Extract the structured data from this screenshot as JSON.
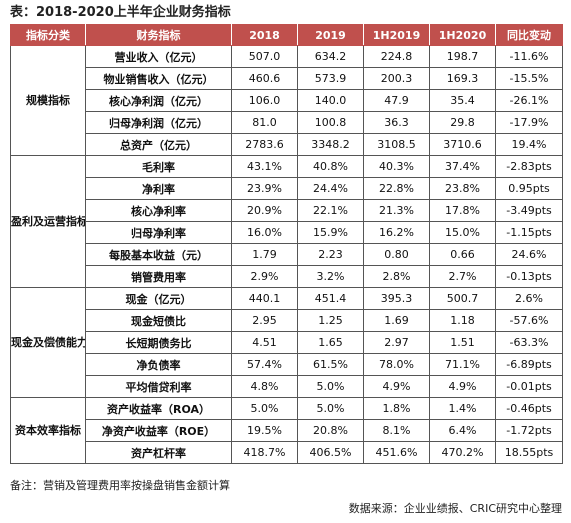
{
  "title": "表：2018-2020上半年企业财务指标",
  "headers": [
    "指标分类",
    "财务指标",
    "2018",
    "2019",
    "1H2019",
    "1H2020",
    "同比变动"
  ],
  "groups": [
    {
      "category": "规模指标",
      "rows": [
        {
          "label": "营业收入（亿元）",
          "values": [
            "507.0",
            "634.2",
            "224.8",
            "198.7",
            "-11.6%"
          ]
        },
        {
          "label": "物业销售收入（亿元）",
          "values": [
            "460.6",
            "573.9",
            "200.3",
            "169.3",
            "-15.5%"
          ]
        },
        {
          "label": "核心净利润（亿元）",
          "values": [
            "106.0",
            "140.0",
            "47.9",
            "35.4",
            "-26.1%"
          ]
        },
        {
          "label": "归母净利润（亿元）",
          "values": [
            "81.0",
            "100.8",
            "36.3",
            "29.8",
            "-17.9%"
          ]
        },
        {
          "label": "总资产（亿元）",
          "values": [
            "2783.6",
            "3348.2",
            "3108.5",
            "3710.6",
            "19.4%"
          ]
        }
      ]
    },
    {
      "category": "盈利及运营指标",
      "rows": [
        {
          "label": "毛利率",
          "values": [
            "43.1%",
            "40.8%",
            "40.3%",
            "37.4%",
            "-2.83pts"
          ]
        },
        {
          "label": "净利率",
          "values": [
            "23.9%",
            "24.4%",
            "22.8%",
            "23.8%",
            "0.95pts"
          ]
        },
        {
          "label": "核心净利率",
          "values": [
            "20.9%",
            "22.1%",
            "21.3%",
            "17.8%",
            "-3.49pts"
          ]
        },
        {
          "label": "归母净利率",
          "values": [
            "16.0%",
            "15.9%",
            "16.2%",
            "15.0%",
            "-1.15pts"
          ]
        },
        {
          "label": "每股基本收益（元）",
          "values": [
            "1.79",
            "2.23",
            "0.80",
            "0.66",
            "24.6%"
          ]
        },
        {
          "label": "销管费用率",
          "values": [
            "2.9%",
            "3.2%",
            "2.8%",
            "2.7%",
            "-0.13pts"
          ]
        }
      ]
    },
    {
      "category": "现金及偿债能力指标",
      "rows": [
        {
          "label": "现金（亿元）",
          "values": [
            "440.1",
            "451.4",
            "395.3",
            "500.7",
            "2.6%"
          ]
        },
        {
          "label": "现金短债比",
          "values": [
            "2.95",
            "1.25",
            "1.69",
            "1.18",
            "-57.6%"
          ]
        },
        {
          "label": "长短期债务比",
          "values": [
            "4.51",
            "1.65",
            "2.97",
            "1.51",
            "-63.3%"
          ]
        },
        {
          "label": "净负债率",
          "values": [
            "57.4%",
            "61.5%",
            "78.0%",
            "71.1%",
            "-6.89pts"
          ]
        },
        {
          "label": "平均借贷利率",
          "values": [
            "4.8%",
            "5.0%",
            "4.9%",
            "4.9%",
            "-0.01pts"
          ]
        }
      ]
    },
    {
      "category": "资本效率指标",
      "rows": [
        {
          "label": "资产收益率（ROA）",
          "values": [
            "5.0%",
            "5.0%",
            "1.8%",
            "1.4%",
            "-0.46pts"
          ]
        },
        {
          "label": "净资产收益率（ROE）",
          "values": [
            "19.5%",
            "20.8%",
            "8.1%",
            "6.4%",
            "-1.72pts"
          ]
        },
        {
          "label": "资产杠杆率",
          "values": [
            "418.7%",
            "406.5%",
            "451.6%",
            "470.2%",
            "18.55pts"
          ]
        }
      ]
    }
  ],
  "note": "备注：营销及管理费用率按操盘销售金额计算",
  "source": "数据来源：企业业绩报、CRIC研究中心整理",
  "colors": {
    "header_bg": "#c0504d",
    "header_text": "#ffffff",
    "border": "#555555"
  }
}
